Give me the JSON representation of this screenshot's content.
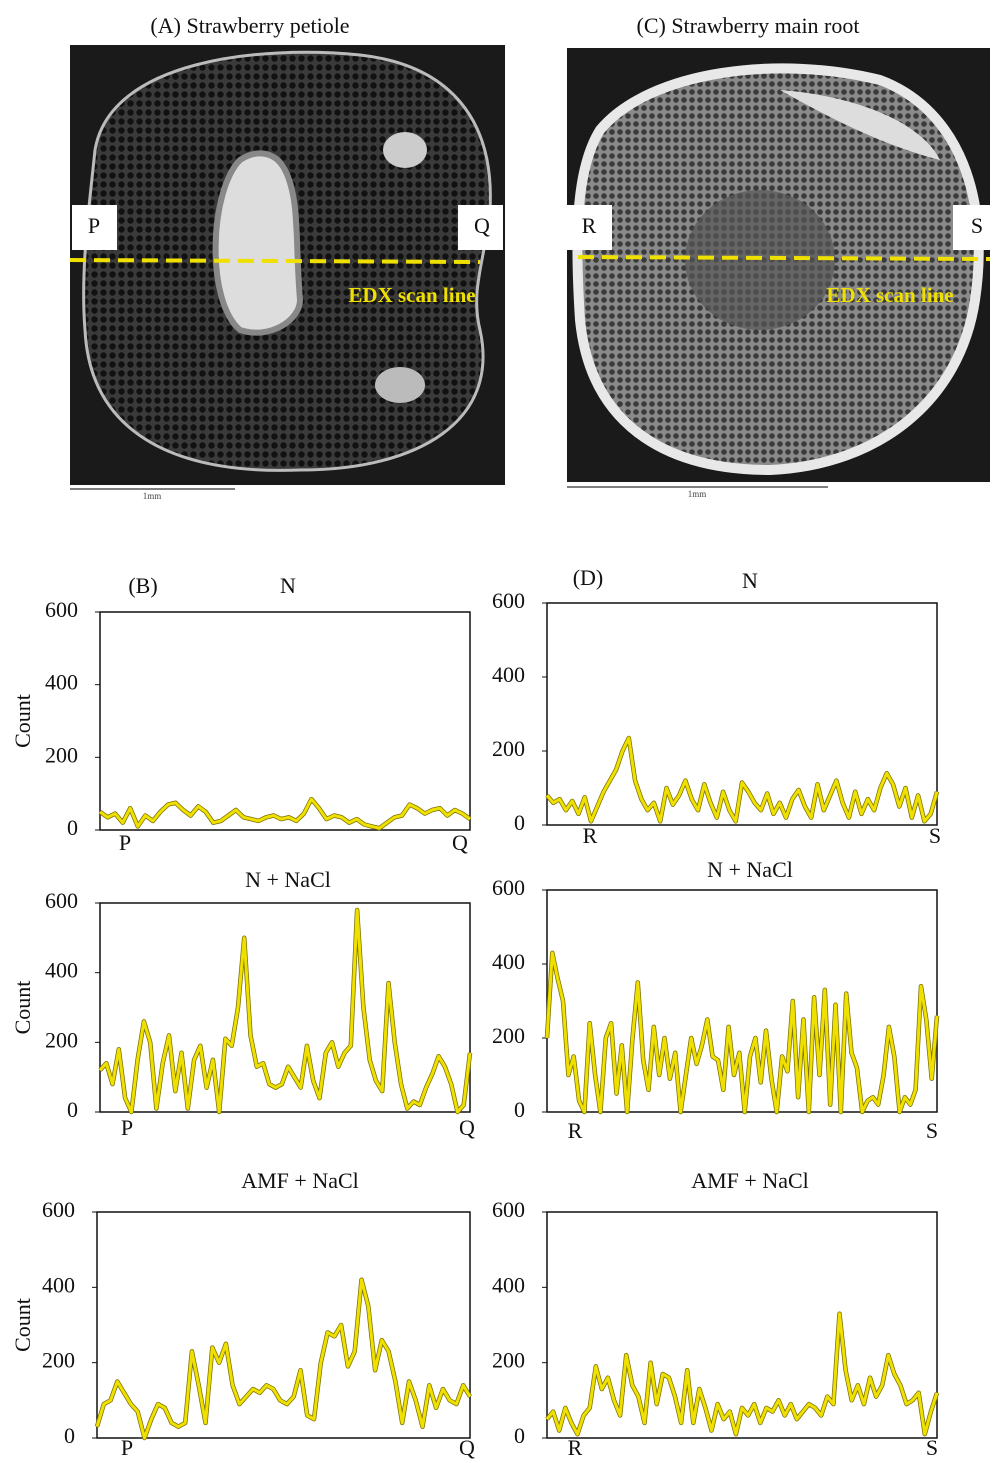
{
  "panels": [
    {
      "title": "(A)  Strawberry petiole",
      "left_label": "P",
      "right_label": "Q",
      "scan_label": "EDX scan line",
      "scale_label": "1mm"
    },
    {
      "title": "(C)  Strawberry main root",
      "left_label": "R",
      "right_label": "S",
      "scan_label": "EDX scan line",
      "scale_label": "1mm"
    }
  ],
  "chart_data": [
    {
      "type": "line",
      "panel_label": "(B)",
      "title": "N",
      "y_label": "Count",
      "x_labels": [
        "P",
        "Q"
      ],
      "series": [
        {
          "color": "#f0e000",
          "values": [
            50,
            35,
            45,
            20,
            60,
            10,
            40,
            25,
            50,
            70,
            75,
            55,
            40,
            65,
            50,
            20,
            25,
            40,
            55,
            35,
            30,
            25,
            35,
            40,
            30,
            35,
            25,
            45,
            85,
            60,
            30,
            40,
            35,
            20,
            30,
            15,
            10,
            5,
            20,
            35,
            40,
            70,
            60,
            45,
            55,
            60,
            40,
            55,
            45,
            30
          ]
        }
      ],
      "ylim": [
        0,
        600
      ],
      "yticks": [
        0,
        200,
        400,
        600
      ]
    },
    {
      "type": "line",
      "panel_label": "(D)",
      "title": "N",
      "x_labels": [
        "R",
        "S"
      ],
      "series": [
        {
          "color": "#f0e000",
          "values": [
            80,
            60,
            70,
            40,
            65,
            30,
            75,
            10,
            50,
            90,
            120,
            150,
            200,
            235,
            120,
            70,
            40,
            60,
            10,
            100,
            55,
            80,
            120,
            70,
            40,
            110,
            60,
            20,
            90,
            40,
            10,
            115,
            90,
            60,
            40,
            85,
            30,
            60,
            20,
            70,
            95,
            50,
            20,
            110,
            40,
            80,
            120,
            60,
            20,
            90,
            30,
            70,
            40,
            100,
            140,
            110,
            50,
            100,
            20,
            80,
            10,
            30,
            90
          ]
        }
      ],
      "ylim": [
        0,
        600
      ],
      "yticks": [
        0,
        200,
        400,
        600
      ]
    },
    {
      "type": "line",
      "title": "N + NaCl",
      "y_label": "Count",
      "x_labels": [
        "P",
        "Q"
      ],
      "series": [
        {
          "color": "#f0e000",
          "values": [
            120,
            140,
            80,
            180,
            40,
            0,
            150,
            260,
            200,
            10,
            140,
            220,
            60,
            170,
            10,
            150,
            190,
            70,
            150,
            0,
            210,
            190,
            300,
            500,
            220,
            130,
            140,
            80,
            70,
            80,
            130,
            100,
            70,
            190,
            90,
            40,
            170,
            200,
            130,
            170,
            190,
            580,
            300,
            150,
            90,
            60,
            370,
            200,
            80,
            10,
            30,
            20,
            70,
            110,
            160,
            130,
            80,
            0,
            20,
            170
          ]
        }
      ],
      "ylim": [
        0,
        600
      ],
      "yticks": [
        0,
        200,
        400,
        600
      ]
    },
    {
      "type": "line",
      "title": "N + NaCl",
      "x_labels": [
        "R",
        "S"
      ],
      "series": [
        {
          "color": "#f0e000",
          "values": [
            200,
            430,
            360,
            300,
            100,
            150,
            30,
            0,
            240,
            100,
            0,
            200,
            240,
            50,
            180,
            0,
            200,
            350,
            140,
            60,
            230,
            100,
            200,
            90,
            160,
            0,
            100,
            200,
            130,
            180,
            250,
            150,
            140,
            60,
            230,
            100,
            160,
            0,
            150,
            200,
            80,
            220,
            90,
            0,
            150,
            110,
            300,
            40,
            250,
            0,
            310,
            100,
            330,
            20,
            290,
            0,
            320,
            160,
            120,
            0,
            30,
            40,
            20,
            100,
            230,
            150,
            0,
            40,
            20,
            60,
            340,
            250,
            90,
            260
          ]
        }
      ],
      "ylim": [
        0,
        600
      ],
      "yticks": [
        0,
        200,
        400,
        600
      ]
    },
    {
      "type": "line",
      "title": "AMF + NaCl",
      "y_label": "Count",
      "x_labels": [
        "P",
        "Q"
      ],
      "series": [
        {
          "color": "#f0e000",
          "values": [
            30,
            90,
            100,
            150,
            120,
            90,
            70,
            0,
            50,
            90,
            80,
            40,
            30,
            40,
            230,
            140,
            40,
            240,
            200,
            250,
            140,
            90,
            110,
            130,
            120,
            140,
            130,
            100,
            90,
            110,
            180,
            60,
            50,
            200,
            280,
            270,
            300,
            190,
            230,
            420,
            350,
            180,
            260,
            230,
            150,
            40,
            150,
            100,
            30,
            140,
            80,
            130,
            100,
            90,
            140,
            110
          ]
        }
      ],
      "ylim": [
        0,
        600
      ],
      "yticks": [
        0,
        200,
        400,
        600
      ]
    },
    {
      "type": "line",
      "title": "AMF + NaCl",
      "x_labels": [
        "R",
        "S"
      ],
      "series": [
        {
          "color": "#f0e000",
          "values": [
            50,
            70,
            20,
            80,
            40,
            10,
            60,
            80,
            190,
            130,
            160,
            100,
            60,
            220,
            140,
            110,
            40,
            200,
            90,
            170,
            160,
            110,
            40,
            180,
            40,
            130,
            80,
            20,
            90,
            50,
            70,
            10,
            80,
            60,
            90,
            40,
            80,
            70,
            100,
            60,
            90,
            50,
            70,
            90,
            80,
            60,
            110,
            90,
            330,
            180,
            100,
            140,
            90,
            160,
            110,
            140,
            220,
            170,
            140,
            90,
            100,
            120,
            10,
            70,
            120
          ]
        }
      ],
      "ylim": [
        0,
        600
      ],
      "yticks": [
        0,
        200,
        400,
        600
      ]
    }
  ]
}
